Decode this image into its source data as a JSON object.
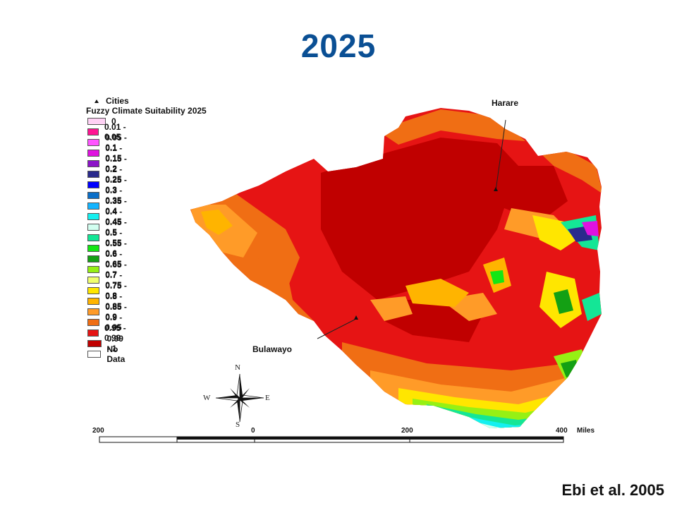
{
  "title": "2025",
  "citation": "Ebi et al. 2005",
  "legend": {
    "cities_label": "Cities",
    "title": "Fuzzy Climate Suitability 2025",
    "items": [
      {
        "label": "0",
        "color": "#ffd2f5"
      },
      {
        "label": "0.01 - 0.05",
        "color": "#ff1493"
      },
      {
        "label": "0.05 - 0.1",
        "color": "#ff55ff"
      },
      {
        "label": "0.1 - 0.15",
        "color": "#e012e0"
      },
      {
        "label": "0.15 - 0.2",
        "color": "#8c14c8"
      },
      {
        "label": "0.2 - 0.25",
        "color": "#2a2a8c"
      },
      {
        "label": "0.25 - 0.3",
        "color": "#0000ff"
      },
      {
        "label": "0.3 - 0.35",
        "color": "#0a6ec8"
      },
      {
        "label": "0.35 - 0.4",
        "color": "#14b4ff"
      },
      {
        "label": "0.4 - 0.45",
        "color": "#14f0f0"
      },
      {
        "label": "0.45 - 0.5",
        "color": "#d2fff0"
      },
      {
        "label": "0.5 - 0.55",
        "color": "#14e696"
      },
      {
        "label": "0.55 - 0.6",
        "color": "#14e614"
      },
      {
        "label": "0.6 - 0.65",
        "color": "#14a014"
      },
      {
        "label": "0.65 - 0.7",
        "color": "#96f014"
      },
      {
        "label": "0.7 - 0.75",
        "color": "#f0ff6e"
      },
      {
        "label": "0.75 - 0.8",
        "color": "#ffe600"
      },
      {
        "label": "0.8 - 0.85",
        "color": "#ffb400"
      },
      {
        "label": "0.85 - 0.9",
        "color": "#ff9b28"
      },
      {
        "label": "0.9 - 0.95",
        "color": "#f06e14"
      },
      {
        "label": "0.95 - 0.99",
        "color": "#e61414"
      },
      {
        "label": "0.99 - 1",
        "color": "#c00000"
      },
      {
        "label": "No Data",
        "color": "#ffffff"
      }
    ]
  },
  "cities": [
    {
      "name": "Harare"
    },
    {
      "name": "Bulawayo"
    }
  ],
  "compass": {
    "n": "N",
    "s": "S",
    "e": "E",
    "w": "W"
  },
  "scale_bar": {
    "labels": [
      "200",
      "0",
      "200",
      "400"
    ],
    "unit": "Miles"
  }
}
